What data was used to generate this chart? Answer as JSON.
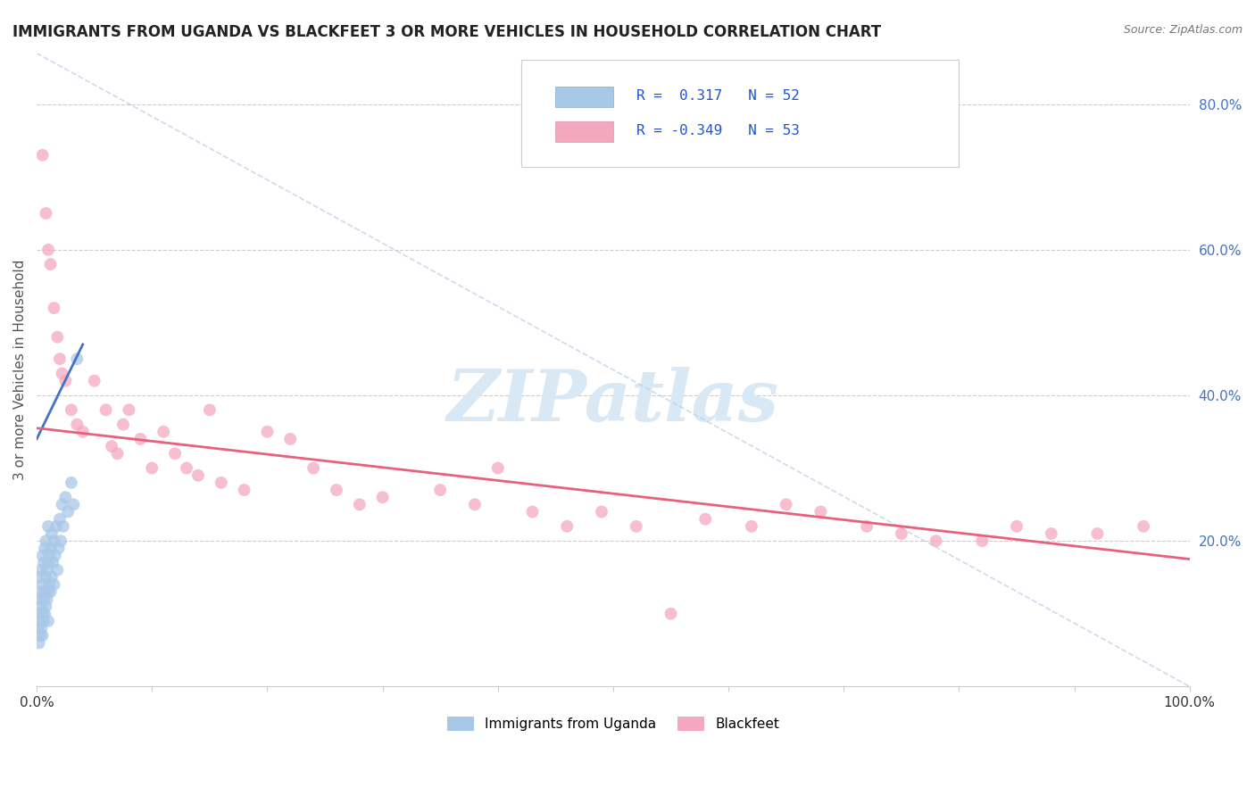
{
  "title": "IMMIGRANTS FROM UGANDA VS BLACKFEET 3 OR MORE VEHICLES IN HOUSEHOLD CORRELATION CHART",
  "source_text": "Source: ZipAtlas.com",
  "ylabel": "3 or more Vehicles in Household",
  "xlim": [
    0.0,
    1.0
  ],
  "ylim": [
    0.0,
    0.87
  ],
  "y_tick_vals": [
    0.2,
    0.4,
    0.6,
    0.8
  ],
  "color_blue": "#a8c8e8",
  "color_pink": "#f4a8c0",
  "color_blue_line": "#4472c4",
  "color_pink_line": "#e8607a",
  "color_dashed": "#b8cce4",
  "watermark_color": "#d8e8f4",
  "background_color": "#ffffff",
  "uganda_x": [
    0.001,
    0.001,
    0.002,
    0.002,
    0.002,
    0.003,
    0.003,
    0.003,
    0.004,
    0.004,
    0.004,
    0.005,
    0.005,
    0.005,
    0.005,
    0.006,
    0.006,
    0.006,
    0.007,
    0.007,
    0.007,
    0.008,
    0.008,
    0.008,
    0.009,
    0.009,
    0.01,
    0.01,
    0.01,
    0.01,
    0.011,
    0.011,
    0.012,
    0.012,
    0.013,
    0.013,
    0.014,
    0.015,
    0.015,
    0.016,
    0.017,
    0.018,
    0.019,
    0.02,
    0.021,
    0.022,
    0.023,
    0.025,
    0.027,
    0.03,
    0.032,
    0.035
  ],
  "uganda_y": [
    0.08,
    0.1,
    0.06,
    0.12,
    0.15,
    0.07,
    0.09,
    0.13,
    0.08,
    0.11,
    0.16,
    0.07,
    0.1,
    0.14,
    0.18,
    0.09,
    0.12,
    0.17,
    0.1,
    0.13,
    0.19,
    0.11,
    0.15,
    0.2,
    0.12,
    0.16,
    0.09,
    0.13,
    0.17,
    0.22,
    0.14,
    0.18,
    0.13,
    0.19,
    0.15,
    0.21,
    0.17,
    0.14,
    0.2,
    0.18,
    0.22,
    0.16,
    0.19,
    0.23,
    0.2,
    0.25,
    0.22,
    0.26,
    0.24,
    0.28,
    0.25,
    0.45
  ],
  "uganda_line_x": [
    0.0,
    0.04
  ],
  "uganda_line_y": [
    0.34,
    0.47
  ],
  "blackfeet_x": [
    0.005,
    0.008,
    0.01,
    0.012,
    0.015,
    0.018,
    0.02,
    0.022,
    0.025,
    0.03,
    0.035,
    0.04,
    0.05,
    0.06,
    0.065,
    0.07,
    0.075,
    0.08,
    0.09,
    0.1,
    0.11,
    0.12,
    0.13,
    0.14,
    0.15,
    0.16,
    0.18,
    0.2,
    0.22,
    0.24,
    0.26,
    0.28,
    0.3,
    0.35,
    0.38,
    0.4,
    0.43,
    0.46,
    0.49,
    0.52,
    0.55,
    0.58,
    0.62,
    0.65,
    0.68,
    0.72,
    0.75,
    0.78,
    0.82,
    0.85,
    0.88,
    0.92,
    0.96
  ],
  "blackfeet_y": [
    0.73,
    0.65,
    0.6,
    0.58,
    0.52,
    0.48,
    0.45,
    0.43,
    0.42,
    0.38,
    0.36,
    0.35,
    0.42,
    0.38,
    0.33,
    0.32,
    0.36,
    0.38,
    0.34,
    0.3,
    0.35,
    0.32,
    0.3,
    0.29,
    0.38,
    0.28,
    0.27,
    0.35,
    0.34,
    0.3,
    0.27,
    0.25,
    0.26,
    0.27,
    0.25,
    0.3,
    0.24,
    0.22,
    0.24,
    0.22,
    0.1,
    0.23,
    0.22,
    0.25,
    0.24,
    0.22,
    0.21,
    0.2,
    0.2,
    0.22,
    0.21,
    0.21,
    0.22
  ],
  "blackfeet_line_x": [
    0.0,
    1.0
  ],
  "blackfeet_line_y": [
    0.355,
    0.175
  ],
  "dashed_line_x": [
    0.0,
    1.0
  ],
  "dashed_line_y": [
    0.87,
    0.0
  ]
}
